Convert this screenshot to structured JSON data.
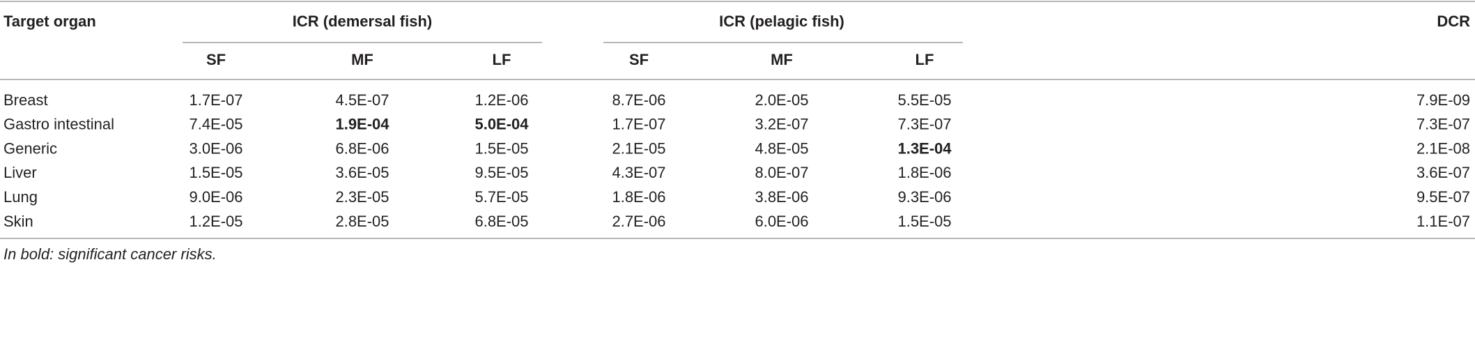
{
  "table": {
    "columns": {
      "organ": "Target organ",
      "groups": [
        {
          "label": "ICR (demersal fish)",
          "subcolumns": [
            "SF",
            "MF",
            "LF"
          ]
        },
        {
          "label": "ICR (pelagic fish)",
          "subcolumns": [
            "SF",
            "MF",
            "LF"
          ]
        }
      ],
      "dcr": "DCR"
    },
    "rows": [
      {
        "organ": "Breast",
        "cells": [
          "1.7E-07",
          "4.5E-07",
          "1.2E-06",
          "8.7E-06",
          "2.0E-05",
          "5.5E-05",
          "7.9E-09"
        ]
      },
      {
        "organ": "Gastro intestinal",
        "cells": [
          "7.4E-05",
          {
            "text": "1.9E-04",
            "bold": true
          },
          {
            "text": "5.0E-04",
            "bold": true
          },
          "1.7E-07",
          "3.2E-07",
          "7.3E-07",
          "7.3E-07"
        ]
      },
      {
        "organ": "Generic",
        "cells": [
          "3.0E-06",
          "6.8E-06",
          "1.5E-05",
          "2.1E-05",
          "4.8E-05",
          {
            "text": "1.3E-04",
            "bold": true
          },
          "2.1E-08"
        ]
      },
      {
        "organ": "Liver",
        "cells": [
          "1.5E-05",
          "3.6E-05",
          "9.5E-05",
          "4.3E-07",
          "8.0E-07",
          "1.8E-06",
          "3.6E-07"
        ]
      },
      {
        "organ": "Lung",
        "cells": [
          "9.0E-06",
          "2.3E-05",
          "5.7E-05",
          "1.8E-06",
          "3.8E-06",
          "9.3E-06",
          "9.5E-07"
        ]
      },
      {
        "organ": "Skin",
        "cells": [
          "1.2E-05",
          "2.8E-05",
          "6.8E-05",
          "2.7E-06",
          "6.0E-06",
          "1.5E-05",
          "1.1E-07"
        ]
      }
    ],
    "note": "In bold: significant cancer risks."
  }
}
